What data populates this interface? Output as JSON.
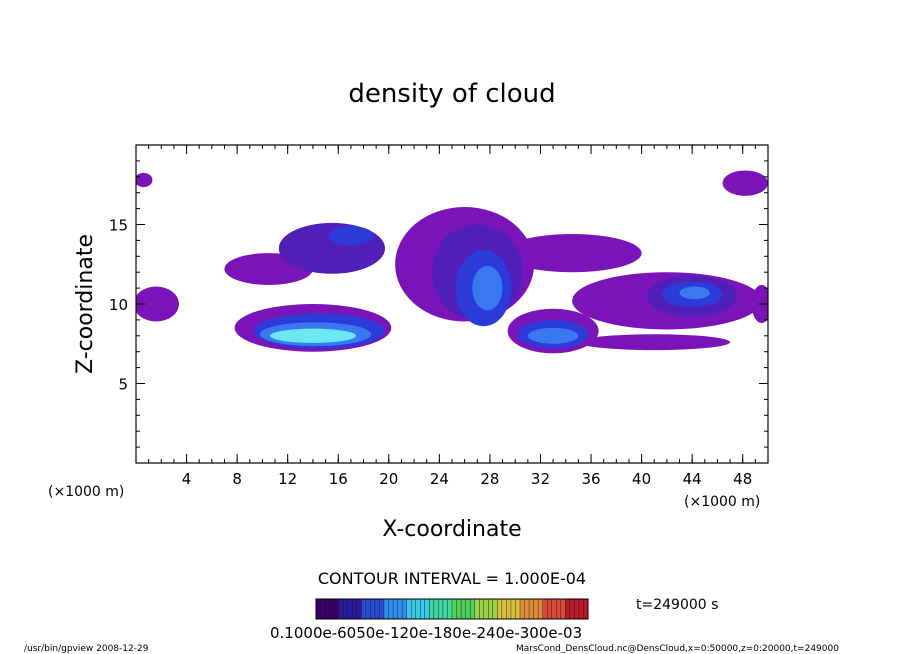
{
  "chart_data": {
    "type": "heatmap",
    "title": "density of cloud",
    "xlabel": "X-coordinate",
    "ylabel": "Z-coordinate",
    "x_unit_left": "(×1000 m)",
    "x_unit_right": "(×1000 m)",
    "xlim": [
      0,
      50
    ],
    "ylim": [
      0,
      20
    ],
    "x_ticks": [
      {
        "v": 4,
        "label": "4"
      },
      {
        "v": 8,
        "label": "8"
      },
      {
        "v": 12,
        "label": "12"
      },
      {
        "v": 16,
        "label": "16"
      },
      {
        "v": 20,
        "label": "20"
      },
      {
        "v": 24,
        "label": "24"
      },
      {
        "v": 28,
        "label": "28"
      },
      {
        "v": 32,
        "label": "32"
      },
      {
        "v": 36,
        "label": "36"
      },
      {
        "v": 40,
        "label": "40"
      },
      {
        "v": 44,
        "label": "44"
      },
      {
        "v": 48,
        "label": "48"
      }
    ],
    "y_ticks": [
      {
        "v": 5,
        "label": "5"
      },
      {
        "v": 10,
        "label": "10"
      },
      {
        "v": 15,
        "label": "15"
      }
    ],
    "contour_interval_text": "CONTOUR INTERVAL = 1.000E-04",
    "time_text": "t=249000  s",
    "colorbar_labels_text": "0.1000e-6050e-120e-180e-240e-300e-03",
    "colorbar_colors": [
      "#3a006a",
      "#2a1aa0",
      "#2a4bd0",
      "#2f8ef0",
      "#38c8e8",
      "#3fd8a0",
      "#52d05a",
      "#9ad048",
      "#d8c040",
      "#e08a3a",
      "#d84a3a",
      "#b81a28"
    ],
    "regions": [
      {
        "cx": 1.6,
        "cy": 10.0,
        "rx": 1.8,
        "ry": 1.1,
        "level": 1
      },
      {
        "cx": 0.6,
        "cy": 17.8,
        "rx": 0.7,
        "ry": 0.45,
        "level": 1
      },
      {
        "cx": 10.5,
        "cy": 12.2,
        "rx": 3.5,
        "ry": 1.0,
        "level": 1
      },
      {
        "cx": 15.5,
        "cy": 13.5,
        "rx": 4.2,
        "ry": 1.6,
        "level": 2
      },
      {
        "cx": 17.0,
        "cy": 14.3,
        "rx": 1.8,
        "ry": 0.6,
        "level": 3
      },
      {
        "cx": 14.0,
        "cy": 8.5,
        "rx": 6.2,
        "ry": 1.5,
        "level": 1
      },
      {
        "cx": 14.5,
        "cy": 8.3,
        "rx": 5.2,
        "ry": 1.1,
        "level": 3
      },
      {
        "cx": 14.2,
        "cy": 8.1,
        "rx": 4.4,
        "ry": 0.75,
        "level": 4
      },
      {
        "cx": 14.0,
        "cy": 8.0,
        "rx": 3.4,
        "ry": 0.45,
        "level": 5
      },
      {
        "cx": 26.0,
        "cy": 12.5,
        "rx": 5.5,
        "ry": 3.6,
        "level": 1
      },
      {
        "cx": 27.0,
        "cy": 12.0,
        "rx": 3.6,
        "ry": 3.0,
        "level": 2
      },
      {
        "cx": 27.5,
        "cy": 11.0,
        "rx": 2.2,
        "ry": 2.4,
        "level": 3
      },
      {
        "cx": 27.8,
        "cy": 11.0,
        "rx": 1.2,
        "ry": 1.4,
        "level": 4
      },
      {
        "cx": 33.0,
        "cy": 8.3,
        "rx": 3.6,
        "ry": 1.4,
        "level": 1
      },
      {
        "cx": 33.0,
        "cy": 8.1,
        "rx": 2.8,
        "ry": 0.9,
        "level": 3
      },
      {
        "cx": 33.0,
        "cy": 8.0,
        "rx": 2.0,
        "ry": 0.5,
        "level": 4
      },
      {
        "cx": 34.5,
        "cy": 13.2,
        "rx": 5.5,
        "ry": 1.2,
        "level": 1
      },
      {
        "cx": 42.0,
        "cy": 10.2,
        "rx": 7.5,
        "ry": 1.8,
        "level": 1
      },
      {
        "cx": 44.0,
        "cy": 10.5,
        "rx": 3.6,
        "ry": 1.3,
        "level": 2
      },
      {
        "cx": 44.0,
        "cy": 10.6,
        "rx": 2.4,
        "ry": 0.8,
        "level": 3
      },
      {
        "cx": 44.2,
        "cy": 10.7,
        "rx": 1.2,
        "ry": 0.4,
        "level": 4
      },
      {
        "cx": 41.0,
        "cy": 7.6,
        "rx": 6.0,
        "ry": 0.5,
        "level": 1
      },
      {
        "cx": 48.2,
        "cy": 17.6,
        "rx": 1.8,
        "ry": 0.8,
        "level": 1
      },
      {
        "cx": 49.5,
        "cy": 10.0,
        "rx": 0.8,
        "ry": 1.2,
        "level": 1
      }
    ],
    "level_colors": [
      "#ffffff",
      "#7a14b8",
      "#5020b8",
      "#2c3ad8",
      "#3a78f0",
      "#6ee8f0"
    ],
    "grid": false
  },
  "footer": {
    "left": "/usr/bin/gpview   2008-12-29",
    "right": "MarsCond_DensCloud.nc@DensCloud,x=0:50000,z=0:20000,t=249000"
  }
}
